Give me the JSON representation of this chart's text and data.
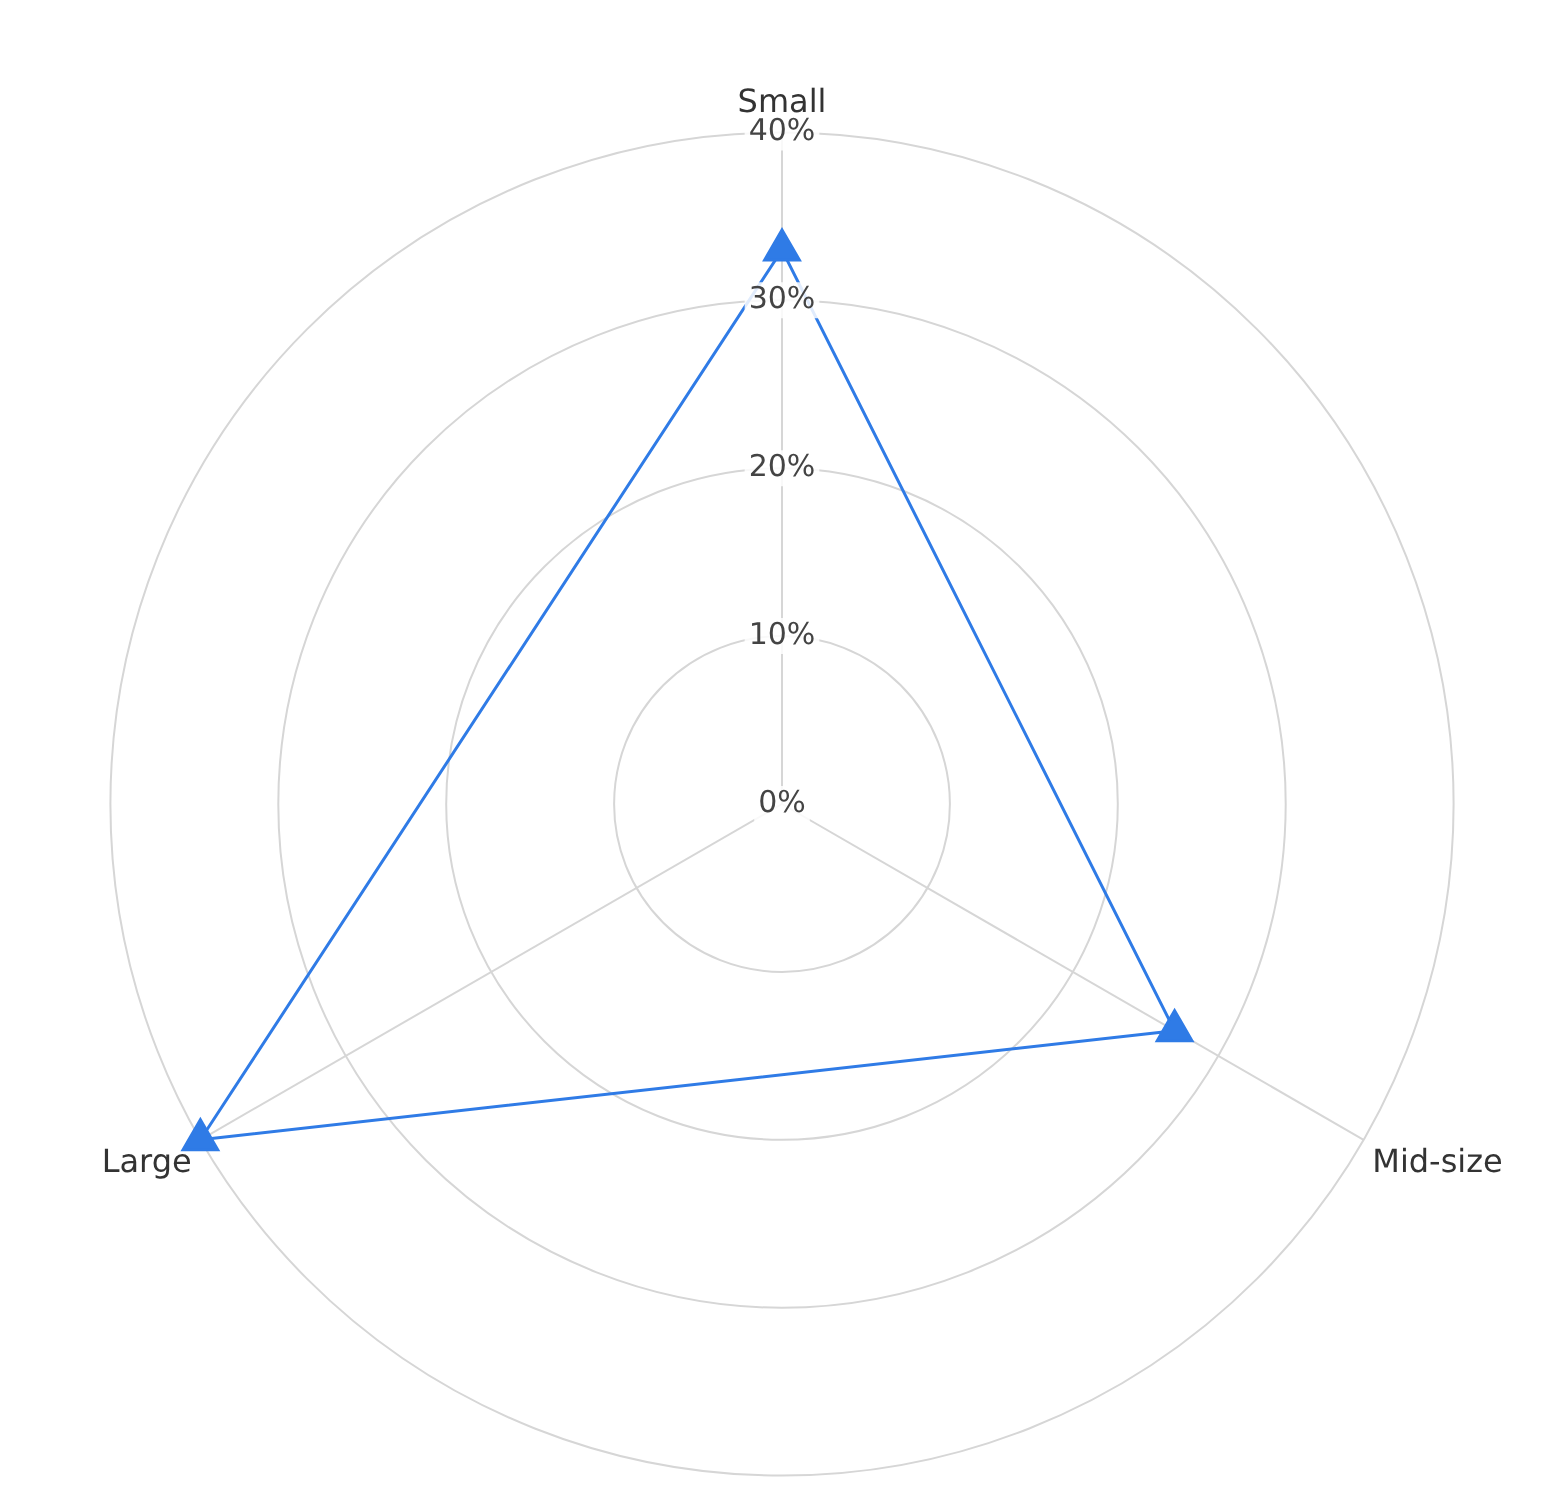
{
  "chart_data": {
    "type": "radar",
    "categories": [
      "Small",
      "Mid-size",
      "Large"
    ],
    "series": [
      {
        "color": "#2f7be6",
        "values": [
          33,
          27,
          40
        ]
      }
    ],
    "ylim": [
      0,
      40
    ],
    "yticks": [
      {
        "value": 0,
        "label": "0%"
      },
      {
        "value": 10,
        "label": "10%"
      },
      {
        "value": 20,
        "label": "20%"
      },
      {
        "value": 30,
        "label": "30%"
      },
      {
        "value": 40,
        "label": "40%"
      }
    ],
    "grid": true,
    "marker": "triangle",
    "line_style": "solid",
    "legend": false
  }
}
